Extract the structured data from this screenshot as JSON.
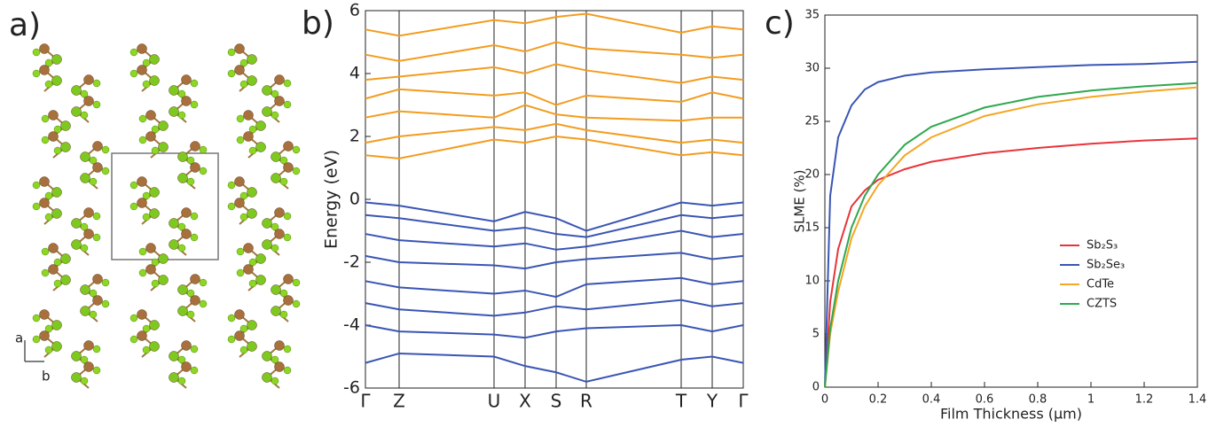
{
  "structure": {
    "panel_label": "a)",
    "axis_labels": [
      "a",
      "b"
    ]
  },
  "chart_data": [
    {
      "type": "line",
      "panel_label": "b)",
      "ylabel": "Energy (eV)",
      "x": [
        0,
        0.38,
        1.45,
        1.8,
        2.15,
        2.49,
        3.56,
        3.91,
        4.26
      ],
      "xlim": [
        0,
        4.26
      ],
      "xticks": [
        {
          "value": 0,
          "label": "Γ"
        },
        {
          "value": 0.38,
          "label": "Z"
        },
        {
          "value": 1.45,
          "label": "U"
        },
        {
          "value": 1.8,
          "label": "X"
        },
        {
          "value": 2.15,
          "label": "S"
        },
        {
          "value": 2.49,
          "label": "R"
        },
        {
          "value": 3.56,
          "label": "T"
        },
        {
          "value": 3.91,
          "label": "Y"
        },
        {
          "value": 4.26,
          "label": "Γ"
        }
      ],
      "ylim": [
        -6,
        6
      ],
      "yticks": [
        -6,
        -4,
        -2,
        0,
        2,
        4,
        6
      ],
      "xgrid": true,
      "series": [
        {
          "color": "#f39c1f",
          "values": [
            1.4,
            1.3,
            1.9,
            1.8,
            2.0,
            1.9,
            1.4,
            1.5,
            1.4
          ]
        },
        {
          "color": "#f39c1f",
          "values": [
            1.8,
            2.0,
            2.3,
            2.2,
            2.4,
            2.2,
            1.8,
            1.9,
            1.8
          ]
        },
        {
          "color": "#f39c1f",
          "values": [
            2.6,
            2.8,
            2.6,
            3.0,
            2.7,
            2.6,
            2.5,
            2.6,
            2.6
          ]
        },
        {
          "color": "#f39c1f",
          "values": [
            3.2,
            3.5,
            3.3,
            3.4,
            3.0,
            3.3,
            3.1,
            3.4,
            3.2
          ]
        },
        {
          "color": "#f39c1f",
          "values": [
            3.8,
            3.9,
            4.2,
            4.0,
            4.3,
            4.1,
            3.7,
            3.9,
            3.8
          ]
        },
        {
          "color": "#f39c1f",
          "values": [
            4.6,
            4.4,
            4.9,
            4.7,
            5.0,
            4.8,
            4.6,
            4.5,
            4.6
          ]
        },
        {
          "color": "#f39c1f",
          "values": [
            5.4,
            5.2,
            5.7,
            5.6,
            5.8,
            5.9,
            5.3,
            5.5,
            5.4
          ]
        },
        {
          "color": "#3a55b4",
          "values": [
            -0.1,
            -0.2,
            -0.7,
            -0.4,
            -0.6,
            -1.0,
            -0.1,
            -0.2,
            -0.1
          ]
        },
        {
          "color": "#3a55b4",
          "values": [
            -0.5,
            -0.6,
            -1.0,
            -0.9,
            -1.1,
            -1.2,
            -0.5,
            -0.6,
            -0.5
          ]
        },
        {
          "color": "#3a55b4",
          "values": [
            -1.1,
            -1.3,
            -1.5,
            -1.4,
            -1.6,
            -1.5,
            -1.0,
            -1.2,
            -1.1
          ]
        },
        {
          "color": "#3a55b4",
          "values": [
            -1.8,
            -2.0,
            -2.1,
            -2.2,
            -2.0,
            -1.9,
            -1.7,
            -1.9,
            -1.8
          ]
        },
        {
          "color": "#3a55b4",
          "values": [
            -2.6,
            -2.8,
            -3.0,
            -2.9,
            -3.1,
            -2.7,
            -2.5,
            -2.7,
            -2.6
          ]
        },
        {
          "color": "#3a55b4",
          "values": [
            -3.3,
            -3.5,
            -3.7,
            -3.6,
            -3.4,
            -3.5,
            -3.2,
            -3.4,
            -3.3
          ]
        },
        {
          "color": "#3a55b4",
          "values": [
            -4.0,
            -4.2,
            -4.3,
            -4.4,
            -4.2,
            -4.1,
            -4.0,
            -4.2,
            -4.0
          ]
        },
        {
          "color": "#3a55b4",
          "values": [
            -5.2,
            -4.9,
            -5.0,
            -5.3,
            -5.5,
            -5.8,
            -5.1,
            -5.0,
            -5.2
          ]
        }
      ]
    },
    {
      "type": "line",
      "panel_label": "c)",
      "xlabel": "Film Thickness (μm)",
      "ylabel": "SLME (%)",
      "x": [
        0,
        0.02,
        0.05,
        0.1,
        0.15,
        0.2,
        0.3,
        0.4,
        0.6,
        0.8,
        1.0,
        1.2,
        1.4
      ],
      "xlim": [
        0,
        1.4
      ],
      "xticks": [
        0,
        0.2,
        0.4,
        0.6,
        0.8,
        1,
        1.2,
        1.4
      ],
      "ylim": [
        0,
        35
      ],
      "yticks": [
        0,
        5,
        10,
        15,
        20,
        25,
        30,
        35
      ],
      "legend": "lower right",
      "series": [
        {
          "name": "Sb₂S₃",
          "color": "#e8343a",
          "values": [
            0,
            8,
            13,
            17,
            18.5,
            19.5,
            20.5,
            21.2,
            22,
            22.5,
            22.9,
            23.2,
            23.4
          ]
        },
        {
          "name": "Sb₂Se₃",
          "color": "#3a55b4",
          "values": [
            0,
            18,
            23.5,
            26.5,
            28,
            28.7,
            29.3,
            29.6,
            29.9,
            30.1,
            30.3,
            30.4,
            30.6
          ]
        },
        {
          "name": "CdTe",
          "color": "#f5a623",
          "values": [
            0,
            5,
            9,
            14,
            17,
            19,
            21.8,
            23.5,
            25.5,
            26.6,
            27.3,
            27.8,
            28.2
          ]
        },
        {
          "name": "CZTS",
          "color": "#2fa84f",
          "values": [
            0,
            5.5,
            10,
            15,
            18,
            20,
            22.8,
            24.5,
            26.3,
            27.3,
            27.9,
            28.3,
            28.6
          ]
        }
      ]
    }
  ]
}
